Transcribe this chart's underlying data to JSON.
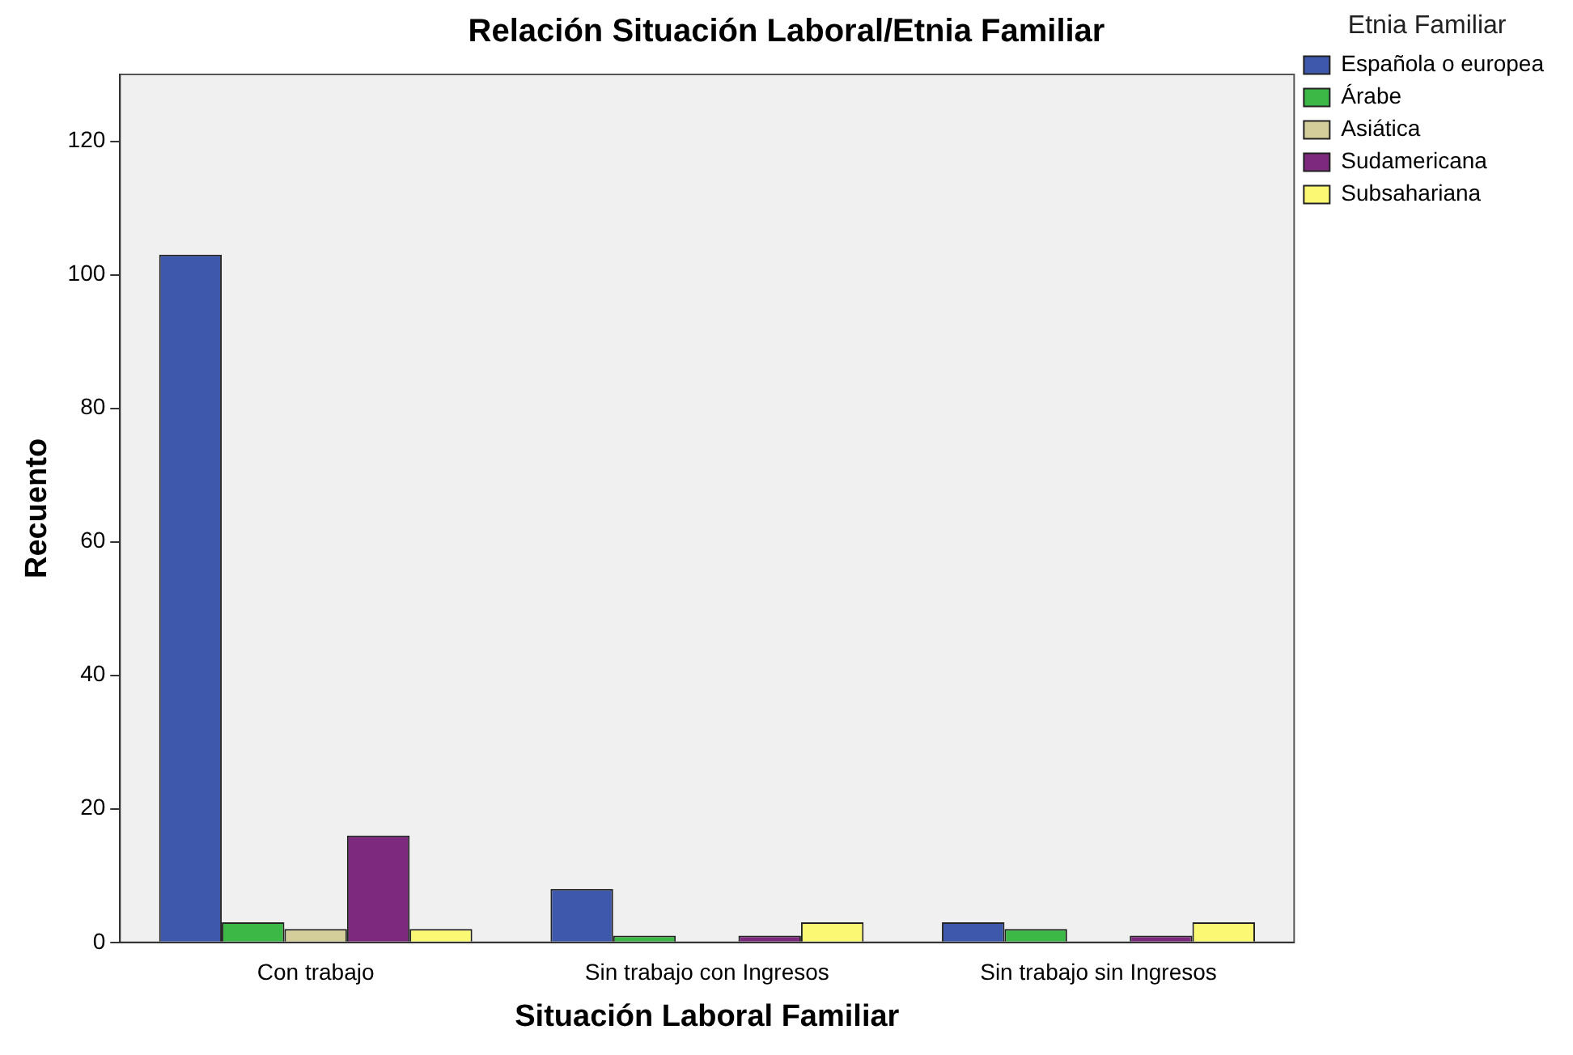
{
  "chart_data": {
    "type": "bar",
    "title": "Relación Situación Laboral/Etnia Familiar",
    "xlabel": "Situación Laboral Familiar",
    "ylabel": "Recuento",
    "legend_title": "Etnia Familiar",
    "legend": "right",
    "grid": false,
    "categories": [
      "Con trabajo",
      "Sin trabajo con Ingresos",
      "Sin trabajo sin Ingresos"
    ],
    "series": [
      {
        "name": "Española o europea",
        "color": "#3e58ac",
        "values": [
          103,
          8,
          3
        ]
      },
      {
        "name": "Árabe",
        "color": "#3cb846",
        "values": [
          3,
          1,
          2
        ]
      },
      {
        "name": "Asiática",
        "color": "#d4cf9a",
        "values": [
          2,
          0,
          0
        ]
      },
      {
        "name": "Sudamericana",
        "color": "#7d2a7e",
        "values": [
          16,
          1,
          1
        ]
      },
      {
        "name": "Subsahariana",
        "color": "#fbf873",
        "values": [
          2,
          3,
          3
        ]
      }
    ],
    "ylim": [
      0,
      130
    ],
    "yticks": [
      0,
      20,
      40,
      60,
      80,
      100,
      120
    ]
  }
}
